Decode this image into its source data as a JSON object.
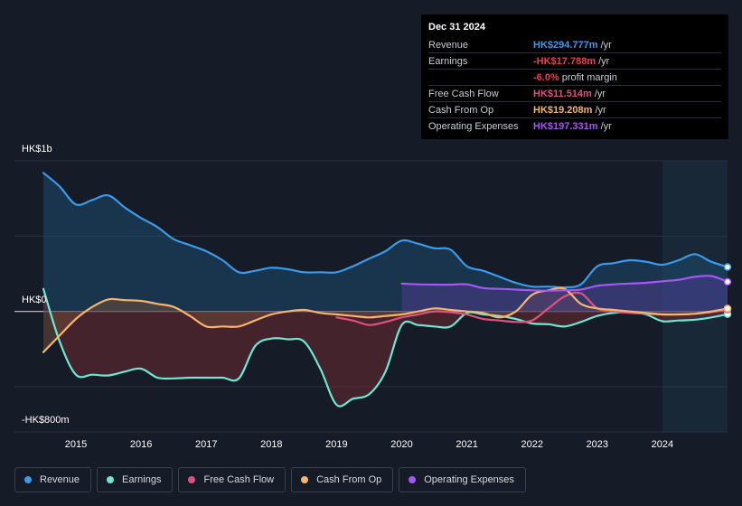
{
  "tooltip": {
    "date": "Dec 31 2024",
    "rows": [
      {
        "label": "Revenue",
        "value": "HK$294.777m",
        "unit": "/yr",
        "color": "#3d9ae8"
      },
      {
        "label": "Earnings",
        "value": "-HK$17.788m",
        "unit": "/yr",
        "color": "#e8414d"
      },
      {
        "label": "",
        "value": "-6.0%",
        "unit": "profit margin",
        "color": "#e8414d"
      },
      {
        "label": "Free Cash Flow",
        "value": "HK$11.514m",
        "unit": "/yr",
        "color": "#e0517e"
      },
      {
        "label": "Cash From Op",
        "value": "HK$19.208m",
        "unit": "/yr",
        "color": "#f5b56d"
      },
      {
        "label": "Operating Expenses",
        "value": "HK$197.331m",
        "unit": "/yr",
        "color": "#a855f7"
      }
    ]
  },
  "legend": [
    {
      "label": "Revenue",
      "color": "#3d9ae8"
    },
    {
      "label": "Earnings",
      "color": "#6ee7d2"
    },
    {
      "label": "Free Cash Flow",
      "color": "#e0517e"
    },
    {
      "label": "Cash From Op",
      "color": "#f5b56d"
    },
    {
      "label": "Operating Expenses",
      "color": "#a855f7"
    }
  ],
  "chart_data": {
    "type": "line",
    "title": "",
    "ylabel": "HK$",
    "ylim": [
      -800,
      1000
    ],
    "y_tick_labels": [
      {
        "value": 1000,
        "label": "HK$1b"
      },
      {
        "value": 0,
        "label": "HK$0"
      },
      {
        "value": -800,
        "label": "-HK$800m"
      }
    ],
    "x_ticks": [
      {
        "value": 2015,
        "label": "2015"
      },
      {
        "value": 2016,
        "label": "2016"
      },
      {
        "value": 2017,
        "label": "2017"
      },
      {
        "value": 2018,
        "label": "2018"
      },
      {
        "value": 2019,
        "label": "2019"
      },
      {
        "value": 2020,
        "label": "2020"
      },
      {
        "value": 2021,
        "label": "2021"
      },
      {
        "value": 2022,
        "label": "2022"
      },
      {
        "value": 2023,
        "label": "2023"
      },
      {
        "value": 2024,
        "label": "2024"
      }
    ],
    "xlim": [
      2014.5,
      2025.0
    ],
    "highlight_from": 2024.0,
    "series": [
      {
        "name": "Revenue",
        "color": "#3d9ae8",
        "fill": "#1d4a6e",
        "x": [
          2014.5,
          2014.75,
          2015.0,
          2015.25,
          2015.5,
          2015.75,
          2016.0,
          2016.25,
          2016.5,
          2016.75,
          2017.0,
          2017.25,
          2017.5,
          2017.75,
          2018.0,
          2018.25,
          2018.5,
          2018.75,
          2019.0,
          2019.25,
          2019.5,
          2019.75,
          2020.0,
          2020.25,
          2020.5,
          2020.75,
          2021.0,
          2021.25,
          2021.5,
          2021.75,
          2022.0,
          2022.25,
          2022.5,
          2022.75,
          2023.0,
          2023.25,
          2023.5,
          2023.75,
          2024.0,
          2024.25,
          2024.5,
          2024.75,
          2025.0
        ],
        "values": [
          920,
          830,
          710,
          740,
          770,
          690,
          620,
          560,
          480,
          440,
          400,
          340,
          260,
          270,
          290,
          280,
          260,
          260,
          260,
          300,
          350,
          400,
          470,
          450,
          420,
          410,
          300,
          270,
          230,
          190,
          165,
          165,
          160,
          180,
          300,
          320,
          340,
          330,
          310,
          340,
          380,
          330,
          295
        ]
      },
      {
        "name": "Earnings",
        "color": "#6ee7d2",
        "fill": "#6b2a33",
        "x": [
          2014.5,
          2014.75,
          2015.0,
          2015.25,
          2015.5,
          2015.75,
          2016.0,
          2016.25,
          2016.5,
          2016.75,
          2017.0,
          2017.25,
          2017.5,
          2017.75,
          2018.0,
          2018.25,
          2018.5,
          2018.75,
          2019.0,
          2019.25,
          2019.5,
          2019.75,
          2020.0,
          2020.25,
          2020.5,
          2020.75,
          2021.0,
          2021.25,
          2021.5,
          2021.75,
          2022.0,
          2022.25,
          2022.5,
          2022.75,
          2023.0,
          2023.25,
          2023.5,
          2023.75,
          2024.0,
          2024.25,
          2024.5,
          2024.75,
          2025.0
        ],
        "values": [
          150,
          -200,
          -420,
          -420,
          -425,
          -400,
          -380,
          -440,
          -445,
          -440,
          -440,
          -440,
          -445,
          -230,
          -180,
          -185,
          -200,
          -380,
          -620,
          -580,
          -550,
          -400,
          -90,
          -90,
          -100,
          -100,
          -10,
          -20,
          -30,
          -50,
          -80,
          -85,
          -100,
          -70,
          -30,
          -10,
          -5,
          -20,
          -65,
          -60,
          -55,
          -40,
          -18
        ]
      },
      {
        "name": "Free Cash Flow",
        "color": "#e0517e",
        "x": [
          2019.0,
          2019.25,
          2019.5,
          2019.75,
          2020.0,
          2020.25,
          2020.5,
          2020.75,
          2021.0,
          2021.25,
          2021.5,
          2021.75,
          2022.0,
          2022.25,
          2022.5,
          2022.75,
          2023.0,
          2023.25,
          2023.5,
          2023.75,
          2024.0,
          2024.25,
          2024.5,
          2024.75,
          2025.0
        ],
        "values": [
          -40,
          -60,
          -90,
          -70,
          -40,
          -20,
          0,
          -5,
          -20,
          -50,
          -60,
          -70,
          -60,
          20,
          100,
          120,
          20,
          0,
          -10,
          -15,
          -20,
          -20,
          -15,
          -5,
          12
        ]
      },
      {
        "name": "Cash From Op",
        "color": "#f5b56d",
        "fill": "#6b4a3a",
        "x": [
          2014.5,
          2014.75,
          2015.0,
          2015.25,
          2015.5,
          2015.75,
          2016.0,
          2016.25,
          2016.5,
          2016.75,
          2017.0,
          2017.25,
          2017.5,
          2017.75,
          2018.0,
          2018.25,
          2018.5,
          2018.75,
          2019.0,
          2019.25,
          2019.5,
          2019.75,
          2020.0,
          2020.25,
          2020.5,
          2020.75,
          2021.0,
          2021.25,
          2021.5,
          2021.75,
          2022.0,
          2022.25,
          2022.5,
          2022.75,
          2023.0,
          2023.25,
          2023.5,
          2023.75,
          2024.0,
          2024.25,
          2024.5,
          2024.75,
          2025.0
        ],
        "values": [
          -270,
          -160,
          -50,
          30,
          80,
          75,
          70,
          50,
          30,
          -30,
          -100,
          -100,
          -100,
          -60,
          -20,
          0,
          10,
          -10,
          -20,
          -30,
          -40,
          -30,
          -20,
          0,
          20,
          10,
          0,
          -10,
          -40,
          0,
          110,
          140,
          150,
          50,
          20,
          10,
          0,
          -10,
          -20,
          -20,
          -15,
          0,
          19
        ]
      },
      {
        "name": "Operating Expenses",
        "color": "#a855f7",
        "fill": "#4a3a8c",
        "x": [
          2020.0,
          2020.25,
          2020.5,
          2020.75,
          2021.0,
          2021.25,
          2021.5,
          2021.75,
          2022.0,
          2022.25,
          2022.5,
          2022.75,
          2023.0,
          2023.25,
          2023.5,
          2023.75,
          2024.0,
          2024.25,
          2024.5,
          2024.75,
          2025.0
        ],
        "values": [
          185,
          180,
          178,
          178,
          180,
          155,
          150,
          145,
          140,
          138,
          140,
          145,
          170,
          180,
          185,
          190,
          200,
          210,
          230,
          235,
          197
        ]
      }
    ]
  }
}
